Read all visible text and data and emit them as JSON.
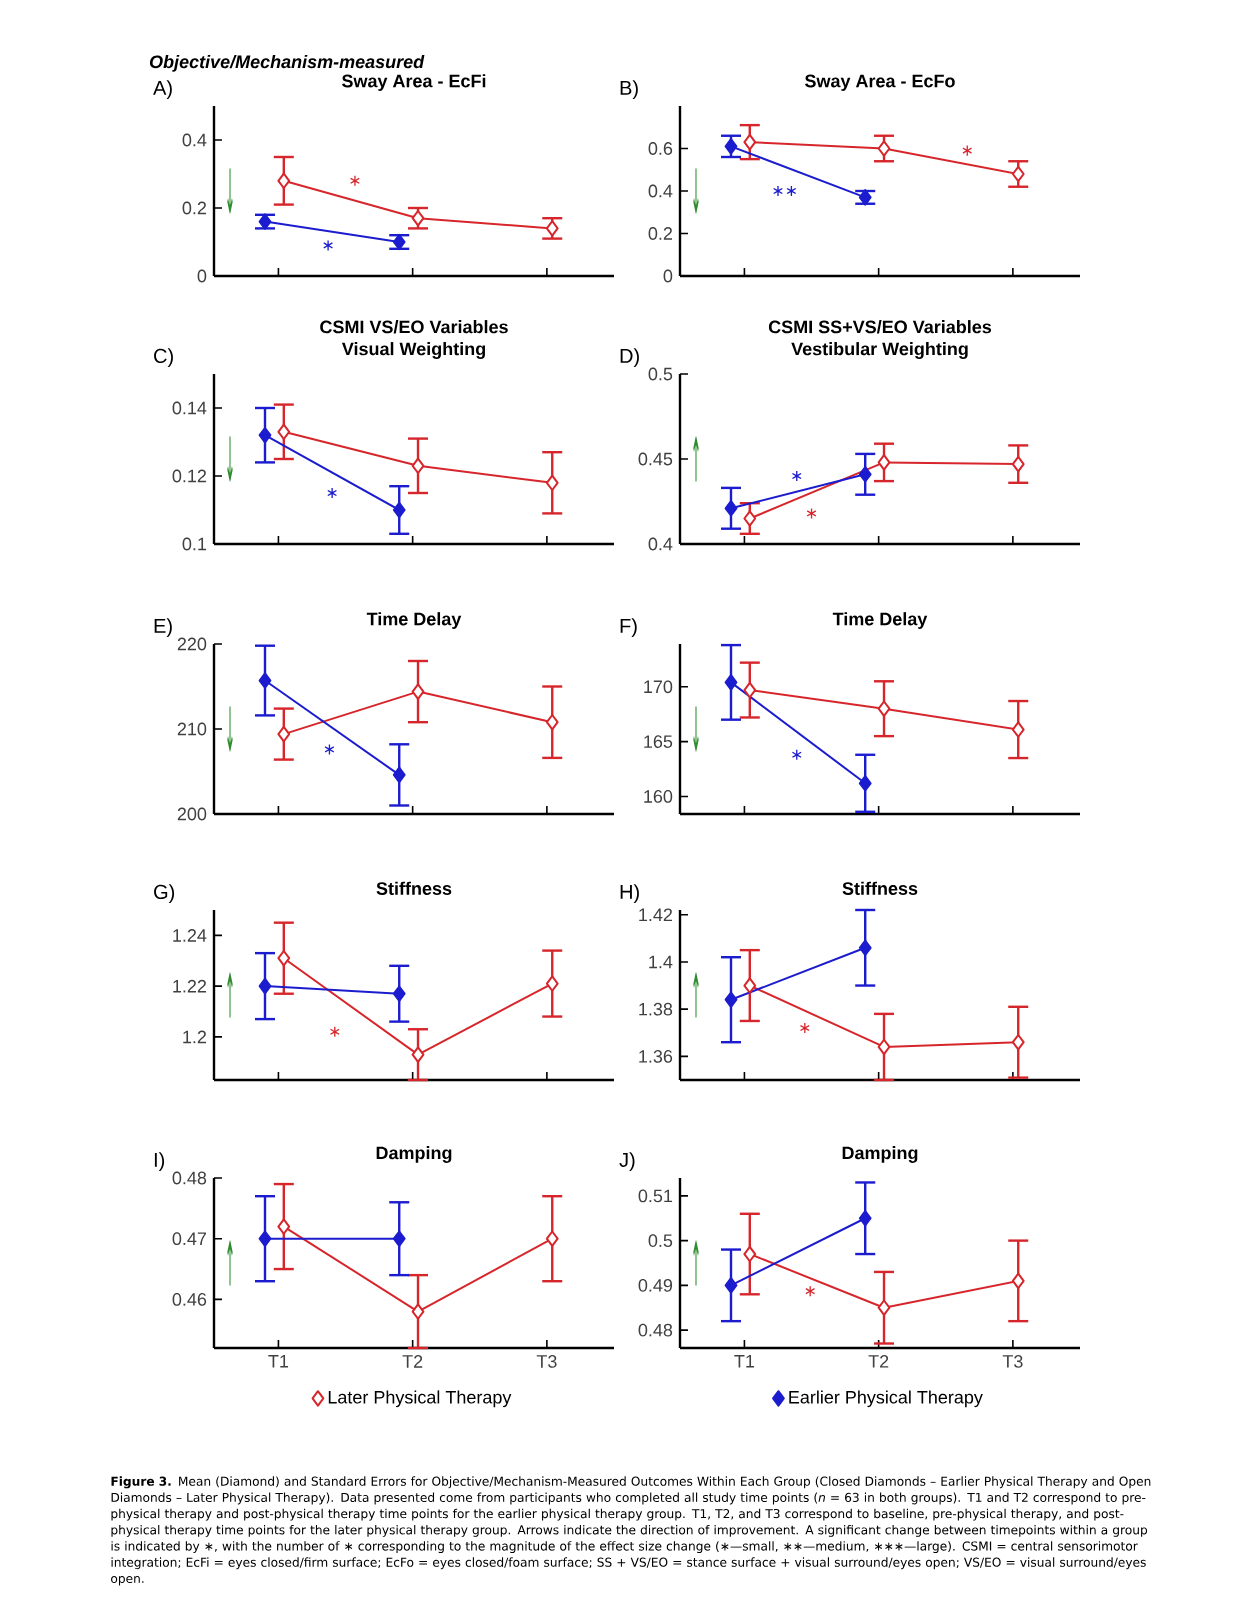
{
  "chart_data": [
    {
      "type": "line",
      "title": "Sway Area - EcFi",
      "categories": [
        null,
        null,
        null
      ],
      "ylim": [
        0,
        0.5
      ],
      "yticks": [
        0,
        0.2,
        0.4
      ],
      "marker": "diamond",
      "series": [
        {
          "color": "#d7262b",
          "values": [
            0.28,
            0.17,
            0.14
          ],
          "errors": [
            0.07,
            0.03,
            0.03
          ]
        },
        {
          "color": "#1c1ccf",
          "values": [
            0.16,
            0.1,
            null
          ],
          "errors": [
            0.02,
            0.02,
            null
          ]
        }
      ],
      "annotations": [
        "A)",
        "↓",
        "∗",
        "∗",
        "Objective/Mechanism-measured"
      ]
    },
    {
      "type": "line",
      "title": "Sway Area - EcFo",
      "categories": [
        null,
        null,
        null
      ],
      "ylim": [
        0,
        0.8
      ],
      "yticks": [
        0,
        0.2,
        0.4,
        0.6
      ],
      "marker": "diamond",
      "series": [
        {
          "color": "#d7262b",
          "values": [
            0.63,
            0.6,
            0.48
          ],
          "errors": [
            0.08,
            0.06,
            0.06
          ]
        },
        {
          "color": "#1c1ccf",
          "values": [
            0.61,
            0.37,
            null
          ],
          "errors": [
            0.05,
            0.03,
            null
          ]
        }
      ],
      "annotations": [
        "B)",
        "↓",
        "∗∗",
        "∗"
      ]
    },
    {
      "type": "line",
      "title": "CSMI VS/EO Variables",
      "subtitle": "Visual Weighting",
      "categories": [
        null,
        null,
        null
      ],
      "ylim": [
        0.1,
        0.15
      ],
      "yticks": [
        0.1,
        0.12,
        0.14
      ],
      "marker": "diamond",
      "series": [
        {
          "color": "#d7262b",
          "values": [
            0.133,
            0.123,
            0.118
          ],
          "errors": [
            0.008,
            0.008,
            0.009
          ]
        },
        {
          "color": "#1c1ccf",
          "values": [
            0.132,
            0.11,
            null
          ],
          "errors": [
            0.008,
            0.007,
            null
          ]
        }
      ],
      "annotations": [
        "C)",
        "↓",
        "∗"
      ]
    },
    {
      "type": "line",
      "title": "CSMI SS+VS/EO Variables",
      "subtitle": "Vestibular Weighting",
      "categories": [
        null,
        null,
        null
      ],
      "ylim": [
        0.4,
        0.5
      ],
      "yticks": [
        0.4,
        0.45,
        0.5
      ],
      "marker": "diamond",
      "series": [
        {
          "color": "#d7262b",
          "values": [
            0.415,
            0.448,
            0.447
          ],
          "errors": [
            0.009,
            0.011,
            0.011
          ]
        },
        {
          "color": "#1c1ccf",
          "values": [
            0.421,
            0.441,
            null
          ],
          "errors": [
            0.012,
            0.012,
            null
          ]
        }
      ],
      "annotations": [
        "D)",
        "↑",
        "∗",
        "∗"
      ]
    },
    {
      "type": "line",
      "title": "Time Delay",
      "categories": [
        null,
        null,
        null
      ],
      "ylim": [
        200,
        220
      ],
      "yticks": [
        200,
        210,
        220
      ],
      "marker": "diamond",
      "series": [
        {
          "color": "#d7262b",
          "values": [
            209.4,
            214.4,
            210.8
          ],
          "errors": [
            3.0,
            3.6,
            4.2
          ]
        },
        {
          "color": "#1c1ccf",
          "values": [
            215.7,
            204.6,
            null
          ],
          "errors": [
            4.1,
            3.6,
            null
          ]
        }
      ],
      "annotations": [
        "E)",
        "↓",
        "∗"
      ]
    },
    {
      "type": "line",
      "title": "Time Delay",
      "categories": [
        null,
        null,
        null
      ],
      "ylim": [
        158.4,
        173.9
      ],
      "yticks": [
        160,
        165,
        170
      ],
      "marker": "diamond",
      "series": [
        {
          "color": "#d7262b",
          "values": [
            169.7,
            168.0,
            166.1
          ],
          "errors": [
            2.5,
            2.5,
            2.6
          ]
        },
        {
          "color": "#1c1ccf",
          "values": [
            170.4,
            161.2,
            null
          ],
          "errors": [
            3.4,
            2.6,
            null
          ]
        }
      ],
      "annotations": [
        "F)",
        "↓",
        "∗"
      ]
    },
    {
      "type": "line",
      "title": "Stiffness",
      "categories": [
        null,
        null,
        null
      ],
      "ylim": [
        1.183,
        1.25
      ],
      "yticks": [
        1.2,
        1.22,
        1.24
      ],
      "marker": "diamond",
      "series": [
        {
          "color": "#d7262b",
          "values": [
            1.231,
            1.193,
            1.221
          ],
          "errors": [
            0.014,
            0.01,
            0.013
          ]
        },
        {
          "color": "#1c1ccf",
          "values": [
            1.22,
            1.217,
            null
          ],
          "errors": [
            0.013,
            0.011,
            null
          ]
        }
      ],
      "annotations": [
        "G)",
        "↑",
        "∗"
      ]
    },
    {
      "type": "line",
      "title": "Stiffness",
      "categories": [
        null,
        null,
        null
      ],
      "ylim": [
        1.35,
        1.422
      ],
      "yticks": [
        1.36,
        1.38,
        1.4,
        1.42
      ],
      "marker": "diamond",
      "series": [
        {
          "color": "#d7262b",
          "values": [
            1.39,
            1.364,
            1.366
          ],
          "errors": [
            0.015,
            0.014,
            0.015
          ]
        },
        {
          "color": "#1c1ccf",
          "values": [
            1.384,
            1.406,
            null
          ],
          "errors": [
            0.018,
            0.016,
            null
          ]
        }
      ],
      "annotations": [
        "H)",
        "↑",
        "∗"
      ]
    },
    {
      "type": "line",
      "title": "Damping",
      "categories": [
        "T1",
        "T2",
        "T3"
      ],
      "ylim": [
        0.452,
        0.48
      ],
      "yticks": [
        0.46,
        0.47,
        0.48
      ],
      "marker": "diamond",
      "legend": "bottom",
      "series": [
        {
          "name": "Later Physical Therapy",
          "color": "#d7262b",
          "values": [
            0.472,
            0.458,
            0.47
          ],
          "errors": [
            0.007,
            0.006,
            0.007
          ]
        },
        {
          "color": "#1c1ccf",
          "values": [
            0.47,
            0.47,
            null
          ],
          "errors": [
            0.007,
            0.006,
            null
          ]
        }
      ],
      "annotations": [
        "I)",
        "↑"
      ]
    },
    {
      "type": "line",
      "title": "Damping",
      "categories": [
        "T1",
        "T2",
        "T3"
      ],
      "ylim": [
        0.476,
        0.514
      ],
      "yticks": [
        0.48,
        0.49,
        0.5,
        0.51
      ],
      "marker": "diamond",
      "legend": "bottom",
      "series": [
        {
          "color": "#d7262b",
          "values": [
            0.497,
            0.485,
            0.491
          ],
          "errors": [
            0.009,
            0.008,
            0.009
          ]
        },
        {
          "name": "Earlier Physical Therapy",
          "color": "#1c1ccf",
          "values": [
            0.49,
            0.505,
            null
          ],
          "errors": [
            0.008,
            0.008,
            null
          ]
        }
      ],
      "annotations": [
        "J)",
        "↑",
        "∗"
      ]
    },
    {
      "type": "other",
      "annotations": [
        "**Figure 3.** Mean (Diamond) and Standard Errors for Objective/Mechanism-Measured Outcomes Within Each Group (Closed Diamonds – Earlier Physical Therapy and Open Diamonds – Later Physical Therapy). Data presented come from participants who completed all study time points (*n* = 63 in both groups). T1 and T2 correspond to pre-physical therapy and post-physical therapy time points for the earlier physical therapy group. T1, T2, and T3 correspond to baseline, pre-physical therapy, and post-physical therapy time points for the later physical therapy group. Arrows indicate the direction of improvement. A significant change between timepoints within a group is indicated by ∗, with the number of ∗ corresponding to the magnitude of the effect size change (∗—small, ∗∗—medium, ∗∗∗—large). CSMI = central sensorimotor integration; EcFi = eyes closed/firm surface; EcFo = eyes closed/foam surface; SS + VS/EO = stance surface + visual surround/eyes open; VS/EO = visual surround/eyes open."
      ]
    }
  ]
}
